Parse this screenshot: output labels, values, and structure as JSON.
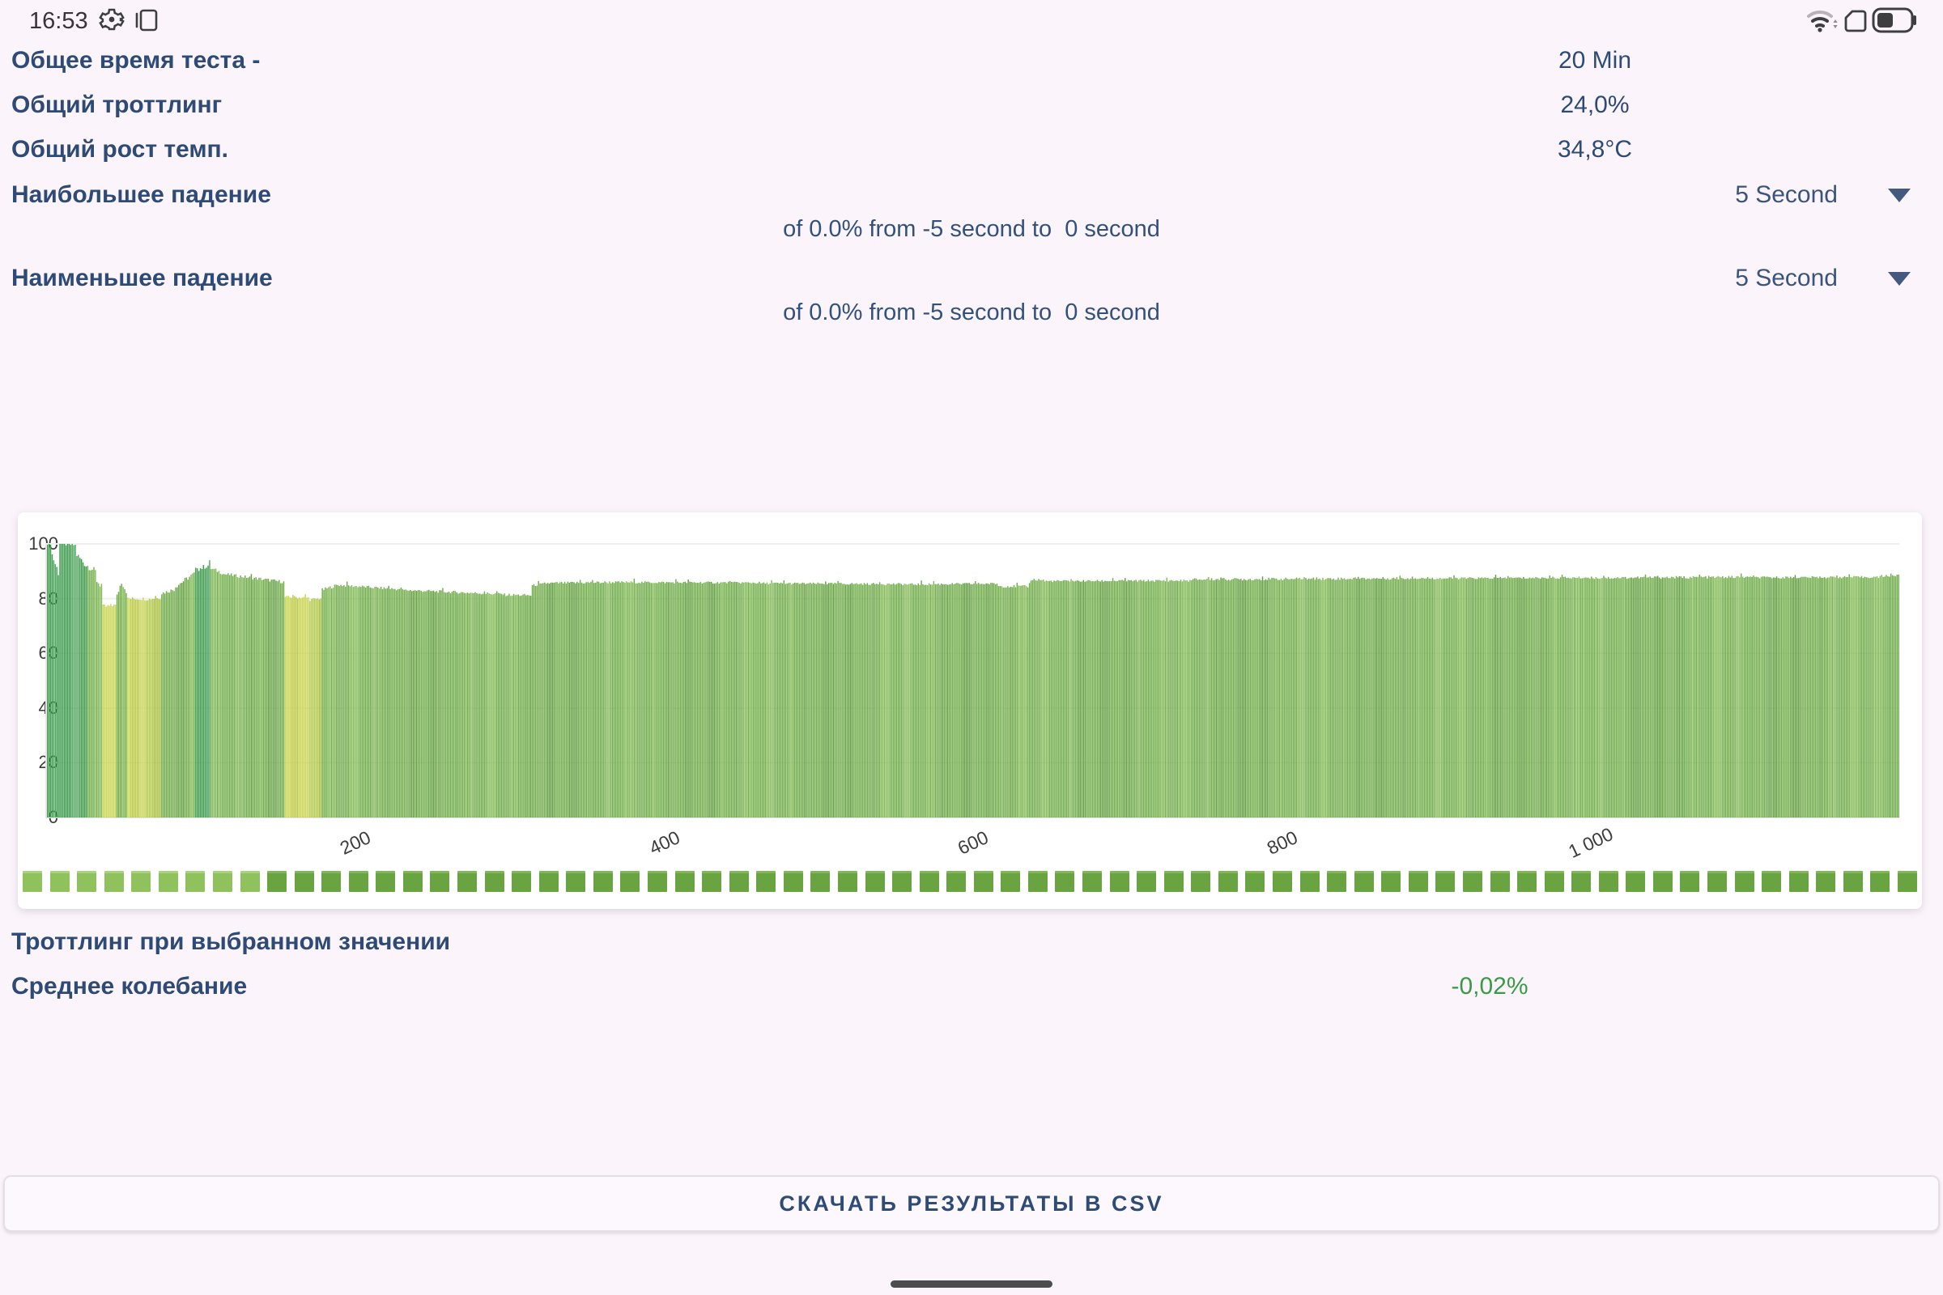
{
  "status_bar": {
    "time": "16:53",
    "left_icons": [
      "gear-icon",
      "screen-overlay-icon"
    ],
    "right_icons": [
      "wifi-icon",
      "sim-icon",
      "battery-icon"
    ]
  },
  "stats": [
    {
      "label": "Общее время теста -",
      "value": "20 Min"
    },
    {
      "label": "Общий троттлинг",
      "value": "24,0%"
    },
    {
      "label": "Общий рост темп.",
      "value": "34,8°C"
    }
  ],
  "drop_rows": [
    {
      "label": "Наибольшее падение",
      "dropdown_value": "5 Second",
      "detail": "of 0.0% from -5 second to  0 second"
    },
    {
      "label": "Наименьшее падение",
      "dropdown_value": "5 Second",
      "detail": "of 0.0% from -5 second to  0 second"
    }
  ],
  "below_chart": {
    "selected_label": "Троттлинг при выбранном значении",
    "avg_label": "Среднее колебание",
    "avg_value": "-0,02%",
    "avg_value_color": "#3A9A46"
  },
  "button": {
    "label": "СКАЧАТЬ РЕЗУЛЬТАТЫ В CSV"
  },
  "colors": {
    "background": "#FBF5FB",
    "label_blue": "#2E4A77",
    "card": "#FFFFFF",
    "green_value": "#3A9A46"
  },
  "chart_data": {
    "type": "bar",
    "title": "",
    "xlabel": "",
    "ylabel": "",
    "ylim": [
      0,
      100
    ],
    "xlim": [
      0,
      1200
    ],
    "grid": true,
    "y_ticks": [
      0,
      20,
      40,
      60,
      80,
      100
    ],
    "x_ticks": [
      {
        "v": 200,
        "label": "200"
      },
      {
        "v": 400,
        "label": "400"
      },
      {
        "v": 600,
        "label": "600"
      },
      {
        "v": 800,
        "label": "800"
      },
      {
        "v": 1000,
        "label": "1 000"
      }
    ],
    "palette": {
      "dark": [
        "#3E9B4D",
        "#4FA75C",
        "#358E44"
      ],
      "green": [
        "#70AC4A",
        "#83BA57",
        "#639F41"
      ],
      "yellow": [
        "#C9D44F",
        "#D6DE5F",
        "#BCC944"
      ],
      "olive": [
        "#B5CA4B",
        "#C2D35A",
        "#A8BE41"
      ]
    },
    "series_note": "CPU performance % per second, 1200 one-second samples; segments give linear value ramps with noise amplitude and color band",
    "segments": [
      {
        "from": 0,
        "to": 3,
        "v0": 100,
        "v1": 100,
        "color": "dark",
        "noise": 0.3
      },
      {
        "from": 3,
        "to": 8,
        "v0": 96,
        "v1": 88,
        "color": "dark",
        "noise": 1.5
      },
      {
        "from": 8,
        "to": 19,
        "v0": 100,
        "v1": 99.5,
        "color": "dark",
        "noise": 0.5
      },
      {
        "from": 19,
        "to": 26,
        "v0": 96,
        "v1": 91.5,
        "color": "dark",
        "noise": 1.2
      },
      {
        "from": 26,
        "to": 32,
        "v0": 92,
        "v1": 89.5,
        "color": "green",
        "noise": 1.2
      },
      {
        "from": 32,
        "to": 36,
        "v0": 86.5,
        "v1": 83.5,
        "color": "green",
        "noise": 1.0
      },
      {
        "from": 36,
        "to": 45,
        "v0": 77,
        "v1": 77.5,
        "color": "yellow",
        "noise": 0.9
      },
      {
        "from": 45,
        "to": 48,
        "v0": 81,
        "v1": 86.5,
        "color": "green",
        "noise": 0.8
      },
      {
        "from": 48,
        "to": 52,
        "v0": 86,
        "v1": 81.5,
        "color": "green",
        "noise": 0.8
      },
      {
        "from": 52,
        "to": 64,
        "v0": 80,
        "v1": 80,
        "color": "yellow",
        "noise": 0.6
      },
      {
        "from": 64,
        "to": 74,
        "v0": 79.8,
        "v1": 80.3,
        "color": "olive",
        "noise": 0.5
      },
      {
        "from": 74,
        "to": 83,
        "v0": 82,
        "v1": 83.5,
        "color": "green",
        "noise": 0.7
      },
      {
        "from": 83,
        "to": 96,
        "v0": 84.5,
        "v1": 89.5,
        "color": "green",
        "noise": 0.9
      },
      {
        "from": 96,
        "to": 106,
        "v0": 90.5,
        "v1": 92.5,
        "color": "dark",
        "noise": 0.9
      },
      {
        "from": 106,
        "to": 114,
        "v0": 91,
        "v1": 89.3,
        "color": "green",
        "noise": 0.7
      },
      {
        "from": 114,
        "to": 154,
        "v0": 89,
        "v1": 86,
        "color": "green",
        "noise": 0.6
      },
      {
        "from": 154,
        "to": 170,
        "v0": 80.6,
        "v1": 80.3,
        "color": "yellow",
        "noise": 0.5
      },
      {
        "from": 170,
        "to": 178,
        "v0": 79.6,
        "v1": 80.2,
        "color": "olive",
        "noise": 0.5
      },
      {
        "from": 178,
        "to": 188,
        "v0": 83.2,
        "v1": 85,
        "color": "green",
        "noise": 0.6
      },
      {
        "from": 188,
        "to": 228,
        "v0": 85,
        "v1": 83.4,
        "color": "green",
        "noise": 0.5
      },
      {
        "from": 228,
        "to": 296,
        "v0": 83.2,
        "v1": 81.6,
        "color": "green",
        "noise": 0.5
      },
      {
        "from": 296,
        "to": 314,
        "v0": 81.4,
        "v1": 81.2,
        "color": "green",
        "noise": 0.5
      },
      {
        "from": 314,
        "to": 322,
        "v0": 84.8,
        "v1": 85.4,
        "color": "green",
        "noise": 0.4
      },
      {
        "from": 322,
        "to": 366,
        "v0": 85.6,
        "v1": 86,
        "color": "green",
        "noise": 0.5
      },
      {
        "from": 366,
        "to": 462,
        "v0": 86,
        "v1": 85.8,
        "color": "green",
        "noise": 0.4
      },
      {
        "from": 462,
        "to": 556,
        "v0": 85.6,
        "v1": 85.3,
        "color": "green",
        "noise": 0.4
      },
      {
        "from": 556,
        "to": 616,
        "v0": 85.2,
        "v1": 85.5,
        "color": "green",
        "noise": 0.4
      },
      {
        "from": 616,
        "to": 637,
        "v0": 84.6,
        "v1": 84.4,
        "color": "green",
        "noise": 0.5
      },
      {
        "from": 637,
        "to": 646,
        "v0": 87,
        "v1": 86.8,
        "color": "green",
        "noise": 0.5
      },
      {
        "from": 646,
        "to": 742,
        "v0": 86.4,
        "v1": 86.6,
        "color": "green",
        "noise": 0.4
      },
      {
        "from": 742,
        "to": 802,
        "v0": 87,
        "v1": 87.2,
        "color": "green",
        "noise": 0.5
      },
      {
        "from": 802,
        "to": 902,
        "v0": 87.2,
        "v1": 87.5,
        "color": "green",
        "noise": 0.5
      },
      {
        "from": 902,
        "to": 1002,
        "v0": 87.4,
        "v1": 87.7,
        "color": "green",
        "noise": 0.4
      },
      {
        "from": 1002,
        "to": 1102,
        "v0": 87.6,
        "v1": 87.9,
        "color": "green",
        "noise": 0.5
      },
      {
        "from": 1102,
        "to": 1188,
        "v0": 87.7,
        "v1": 87.9,
        "color": "green",
        "noise": 0.4
      },
      {
        "from": 1188,
        "to": 1200,
        "v0": 88.3,
        "v1": 88.4,
        "color": "green",
        "noise": 0.5
      }
    ],
    "scrubber": {
      "count": 70,
      "light_count": 9,
      "light": "#8FC15C",
      "dark": "#69A441",
      "light_edge": "#A8D27E",
      "dark_edge": "#82B65A"
    }
  }
}
